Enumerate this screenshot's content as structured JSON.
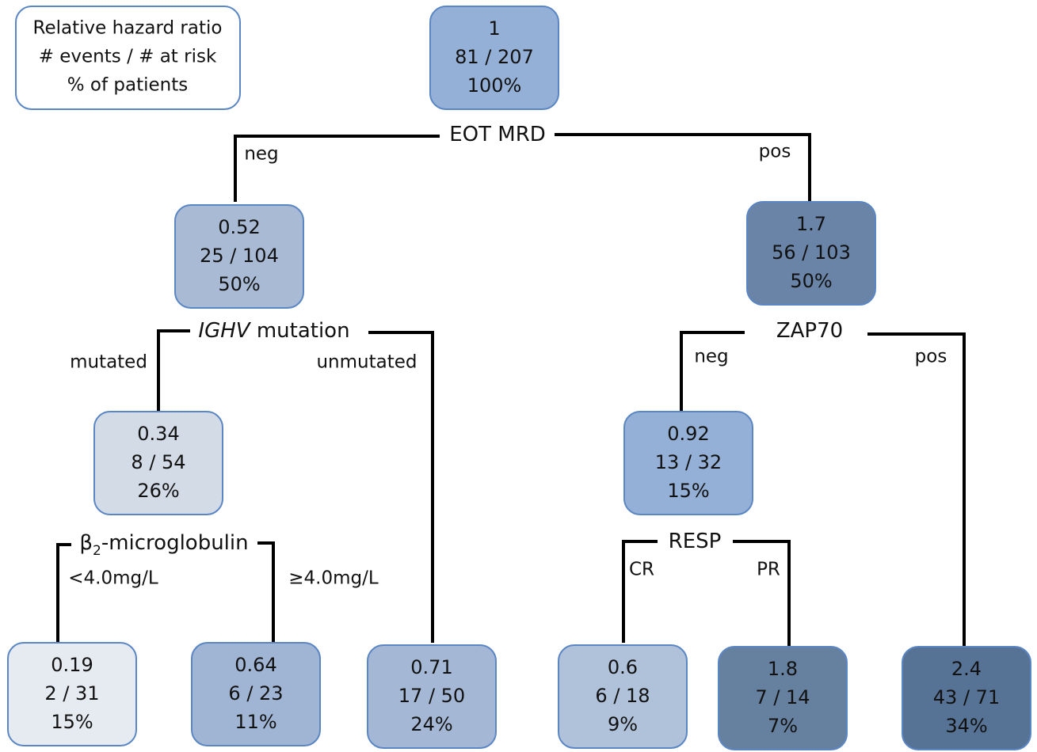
{
  "legend": {
    "lines": [
      "Relative hazard ratio",
      "# events / # at risk",
      "% of patients"
    ]
  },
  "nodes": [
    {
      "lines": [
        "1",
        "81 / 207",
        "100%"
      ]
    },
    {
      "lines": [
        "0.52",
        "25 / 104",
        "50%"
      ]
    },
    {
      "lines": [
        "1.7",
        "56 / 103",
        "50%"
      ]
    },
    {
      "lines": [
        "0.34",
        "8 / 54",
        "26%"
      ]
    },
    {
      "lines": [
        "0.92",
        "13 / 32",
        "15%"
      ]
    },
    {
      "lines": [
        "0.19",
        "2 / 31",
        "15%"
      ]
    },
    {
      "lines": [
        "0.64",
        "6 / 23",
        "11%"
      ]
    },
    {
      "lines": [
        "0.71",
        "17 / 50",
        "24%"
      ]
    },
    {
      "lines": [
        "0.6",
        "6 / 18",
        "9%"
      ]
    },
    {
      "lines": [
        "1.8",
        "7 / 14",
        "7%"
      ]
    },
    {
      "lines": [
        "2.4",
        "43 / 71",
        "34%"
      ]
    }
  ],
  "splits": [
    {
      "label": [
        {
          "text": "EOT MRD"
        }
      ],
      "left": "neg",
      "right": "pos"
    },
    {
      "label": [
        {
          "text": "IGHV",
          "style": "italic"
        },
        {
          "text": " mutation"
        }
      ],
      "left": "mutated",
      "right": "unmutated"
    },
    {
      "label": [
        {
          "text": "ZAP70"
        }
      ],
      "left": "neg",
      "right": "pos"
    },
    {
      "label": [
        {
          "text": "β"
        },
        {
          "text": "2",
          "style": "subscript"
        },
        {
          "text": "-microglobulin"
        }
      ],
      "left": "<4.0mg/L",
      "right": "≥4.0mg/L"
    },
    {
      "label": [
        {
          "text": "RESP"
        }
      ],
      "left": "CR",
      "right": "PR"
    }
  ]
}
